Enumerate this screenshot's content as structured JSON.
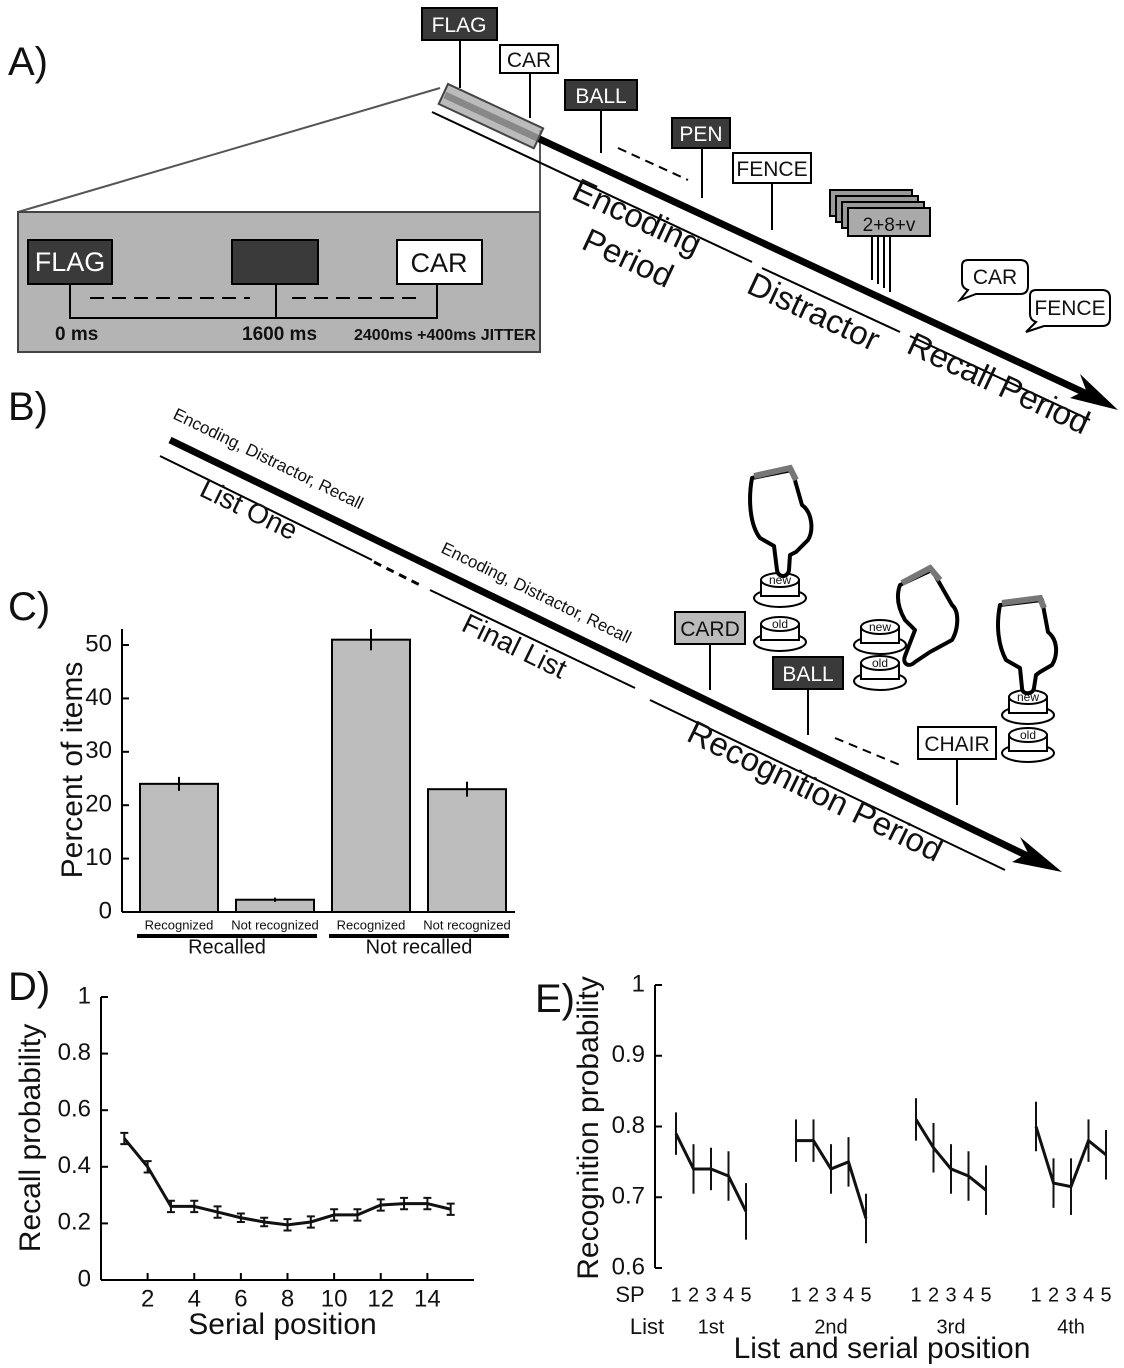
{
  "panel_a": {
    "label": "A)",
    "words": [
      "FLAG",
      "CAR",
      "BALL",
      "PEN",
      "FENCE"
    ],
    "distractor": "2+8+v",
    "recalled": [
      "CAR",
      "FENCE"
    ],
    "phases": [
      "Encoding",
      "Period",
      "Distractor",
      "Recall Period"
    ],
    "inset": {
      "words": [
        "FLAG",
        "CAR"
      ],
      "times": [
        "0 ms",
        "1600 ms",
        "2400ms +400ms JITTER"
      ]
    }
  },
  "panel_b": {
    "label": "B)",
    "segments": [
      {
        "caption": "Encoding, Distractor, Recall",
        "name": "List One"
      },
      {
        "caption": "Encoding, Distractor, Recall",
        "name": "Final List"
      },
      {
        "name": "Recognition Period"
      }
    ],
    "words": [
      "CARD",
      "BALL",
      "CHAIR"
    ],
    "buttons": [
      "new",
      "old"
    ]
  },
  "chart_data": [
    {
      "type": "bar",
      "panel_label": "C)",
      "ylabel": "Percent of items",
      "categories": [
        "Recognized",
        "Not recognized",
        "Recognized",
        "Not recognized"
      ],
      "groups": [
        "Recalled",
        "Not recalled"
      ],
      "values": [
        24,
        2.3,
        51,
        23
      ],
      "errors": [
        1.3,
        0.4,
        2,
        1.4
      ],
      "color": "#bdbdbd",
      "ylim": [
        0,
        53
      ],
      "yticks": [
        0,
        10,
        20,
        30,
        40,
        50
      ]
    },
    {
      "type": "line",
      "panel_label": "D)",
      "xlabel": "Serial position",
      "ylabel": "Recall probability",
      "x": [
        1,
        2,
        3,
        4,
        5,
        6,
        7,
        8,
        9,
        10,
        11,
        12,
        13,
        14,
        15
      ],
      "values": [
        0.5,
        0.4,
        0.26,
        0.26,
        0.24,
        0.22,
        0.205,
        0.195,
        0.205,
        0.23,
        0.23,
        0.265,
        0.27,
        0.27,
        0.25
      ],
      "errors": [
        0.02,
        0.02,
        0.02,
        0.02,
        0.02,
        0.015,
        0.015,
        0.02,
        0.02,
        0.02,
        0.02,
        0.02,
        0.02,
        0.02,
        0.02
      ],
      "color": "#111111",
      "xlim": [
        0,
        16
      ],
      "xticks": [
        2,
        4,
        6,
        8,
        10,
        12,
        14
      ],
      "ylim": [
        0,
        1
      ],
      "yticks": [
        0,
        0.2,
        0.4,
        0.6,
        0.8,
        1
      ]
    },
    {
      "type": "grouped-line",
      "panel_label": "E)",
      "xlabel": "List and serial position",
      "ylabel": "Recognition probability",
      "sp_label": "SP",
      "list_label": "List",
      "categories": [
        "1",
        "2",
        "3",
        "4",
        "5"
      ],
      "series": [
        {
          "name": "1st",
          "values": [
            0.79,
            0.74,
            0.74,
            0.73,
            0.68
          ],
          "errors": [
            0.03,
            0.035,
            0.03,
            0.035,
            0.04
          ]
        },
        {
          "name": "2nd",
          "values": [
            0.78,
            0.78,
            0.74,
            0.75,
            0.67
          ],
          "errors": [
            0.03,
            0.03,
            0.035,
            0.035,
            0.035
          ]
        },
        {
          "name": "3rd",
          "values": [
            0.81,
            0.77,
            0.74,
            0.73,
            0.71
          ],
          "errors": [
            0.03,
            0.035,
            0.035,
            0.035,
            0.035
          ]
        },
        {
          "name": "4th",
          "values": [
            0.8,
            0.72,
            0.715,
            0.78,
            0.76
          ],
          "errors": [
            0.035,
            0.035,
            0.04,
            0.03,
            0.035
          ]
        }
      ],
      "color": "#111111",
      "ylim": [
        0.6,
        1
      ],
      "yticks": [
        0.6,
        0.7,
        0.8,
        0.9,
        1
      ]
    }
  ]
}
